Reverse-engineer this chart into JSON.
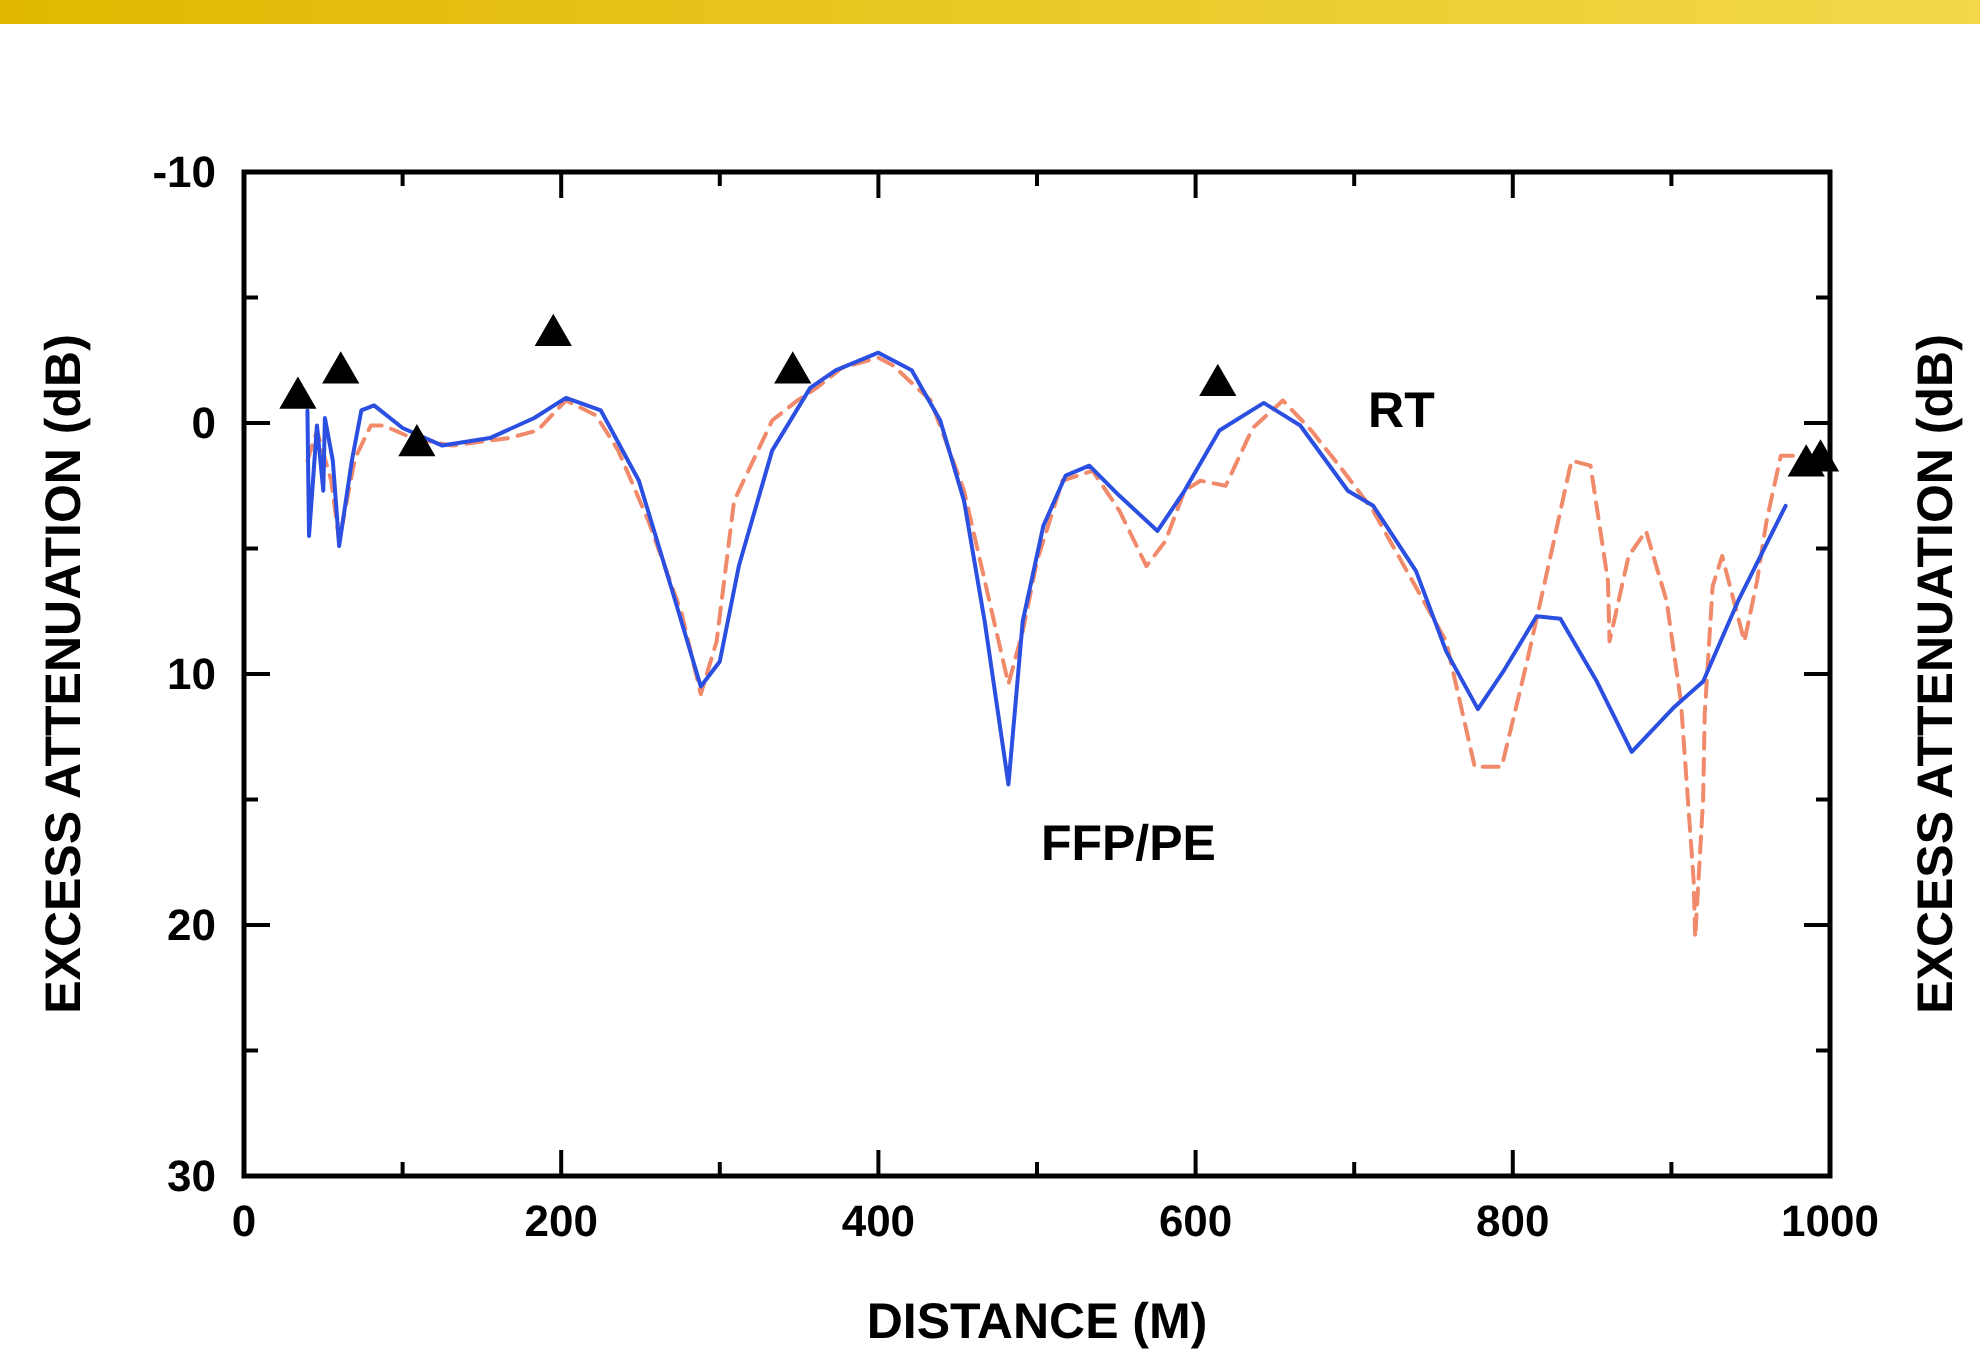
{
  "chart_data": {
    "type": "line",
    "xlabel": "DISTANCE (M)",
    "ylabel": "EXCESS ATTENUATION (dB)",
    "y2label": "EXCESS ATTENUATION (dB)",
    "xlim": [
      0,
      1000
    ],
    "ylim": [
      30,
      -10
    ],
    "xticks": [
      0,
      {
        "value": 100,
        "label": null
      },
      200,
      {
        "value": 300,
        "label": null
      },
      400,
      {
        "value": 500,
        "label": null
      },
      600,
      {
        "value": 700,
        "label": null
      },
      800,
      {
        "value": 900,
        "label": null
      },
      1000
    ],
    "yticks": [
      -10,
      {
        "value": -5,
        "label": null
      },
      0,
      {
        "value": 5,
        "label": null
      },
      10,
      {
        "value": 15,
        "label": null
      },
      20,
      {
        "value": 25,
        "label": null
      },
      30
    ],
    "grid": false,
    "series": [
      {
        "name": "RT",
        "color": "#f08a6a",
        "line_style": "dashed",
        "marker": "none",
        "x": [
          40,
          46,
          55,
          60,
          70,
          80,
          88,
          106,
          131,
          167,
          185,
          203,
          222,
          236,
          255,
          276,
          288,
          298,
          309,
          333,
          349,
          361,
          377,
          400,
          409,
          433,
          454,
          470,
          482,
          491,
          500,
          516,
          535,
          552,
          569,
          581,
          593,
          603,
          619,
          636,
          655,
          673,
          693,
          712,
          758,
          776,
          793,
          809,
          821,
          837,
          849,
          860,
          861,
          873,
          884,
          897,
          906,
          914,
          915,
          920,
          921,
          926,
          932,
          946,
          954,
          960,
          969,
          978
        ],
        "values": [
          1.5,
          0.3,
          2.3,
          4.7,
          1.4,
          0.1,
          0.1,
          0.6,
          0.9,
          0.6,
          0.3,
          -0.9,
          -0.3,
          1.1,
          3.9,
          7.6,
          10.8,
          8.7,
          3.1,
          -0.1,
          -0.9,
          -1.4,
          -2.2,
          -2.6,
          -2.3,
          -0.9,
          2.7,
          7.1,
          10.4,
          8.3,
          5.5,
          2.3,
          1.9,
          3.5,
          5.7,
          4.7,
          2.7,
          2.3,
          2.5,
          0.2,
          -0.9,
          0.3,
          1.9,
          3.5,
          8.7,
          13.7,
          13.7,
          9.5,
          6.1,
          1.5,
          1.7,
          6.3,
          8.7,
          5.3,
          4.3,
          7.1,
          11.1,
          18.2,
          20.5,
          15,
          11.6,
          6.5,
          5.3,
          8.7,
          6.3,
          3.9,
          1.3,
          1.3
        ]
      },
      {
        "name": "FFP/PE",
        "color": "#2b4fe0",
        "line_style": "solid",
        "marker": "none",
        "x": [
          40,
          41,
          46,
          50,
          51,
          56,
          60,
          68,
          74,
          82,
          100,
          125,
          155,
          183,
          203,
          225,
          249,
          272,
          288,
          300,
          312,
          333,
          357,
          373,
          400,
          421,
          439,
          454,
          467,
          482,
          491,
          504,
          518,
          533,
          552,
          576,
          593,
          615,
          643,
          666,
          696,
          712,
          739,
          758,
          778,
          794,
          815,
          830,
          853,
          875,
          902,
          920,
          942,
          972
        ],
        "values": [
          -0.5,
          4.5,
          0.1,
          2.7,
          -0.2,
          1.5,
          4.9,
          1.5,
          -0.5,
          -0.7,
          0.2,
          0.9,
          0.6,
          -0.2,
          -1.0,
          -0.5,
          2.3,
          7.1,
          10.5,
          9.5,
          5.7,
          1.1,
          -1.4,
          -2.1,
          -2.8,
          -2.1,
          -0.1,
          3.1,
          7.9,
          14.4,
          7.9,
          4.1,
          2.1,
          1.7,
          2.9,
          4.3,
          2.7,
          0.3,
          -0.8,
          0.1,
          2.7,
          3.3,
          5.9,
          9.1,
          11.4,
          9.9,
          7.7,
          7.8,
          10.3,
          13.1,
          11.3,
          10.3,
          7.1,
          3.3
        ]
      },
      {
        "type": "scatter",
        "color": "#000000",
        "marker": "triangle",
        "x": [
          34,
          61,
          109,
          195,
          346,
          614,
          985,
          994
        ],
        "values": [
          -1.0,
          -2.0,
          0.9,
          -3.5,
          -2.0,
          -1.5,
          1.7,
          1.5
        ]
      }
    ]
  }
}
